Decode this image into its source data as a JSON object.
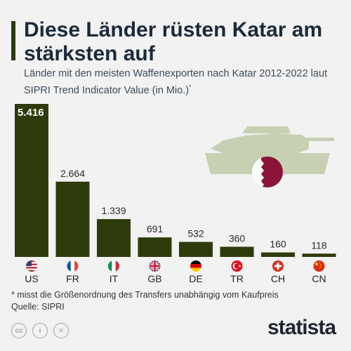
{
  "header": {
    "title": "Diese Länder rüsten Katar am stärksten auf",
    "subtitle": "Länder mit den meisten Waffenexporten nach Katar 2012-2022 laut SIPRI Trend Indicator Value (in Mio.)",
    "subtitle_mark": "*"
  },
  "chart_data": {
    "type": "bar",
    "categories": [
      "US",
      "FR",
      "IT",
      "GB",
      "DE",
      "TR",
      "CH",
      "CN"
    ],
    "values": [
      5416,
      2664,
      1339,
      691,
      532,
      360,
      160,
      118
    ],
    "value_labels": [
      "5.416",
      "2.664",
      "1.339",
      "691",
      "532",
      "360",
      "160",
      "118"
    ],
    "ylim": [
      0,
      5416
    ],
    "bar_color": "#2e3b0b",
    "grid": false
  },
  "flags": [
    {
      "country": "US",
      "icon": "us-flag-icon"
    },
    {
      "country": "FR",
      "icon": "fr-flag-icon"
    },
    {
      "country": "IT",
      "icon": "it-flag-icon"
    },
    {
      "country": "GB",
      "icon": "gb-flag-icon"
    },
    {
      "country": "DE",
      "icon": "de-flag-icon"
    },
    {
      "country": "TR",
      "icon": "tr-flag-icon"
    },
    {
      "country": "CH",
      "icon": "ch-flag-icon"
    },
    {
      "country": "CN",
      "icon": "cn-flag-icon"
    }
  ],
  "footer": {
    "note": "* misst die Größenordnung des Transfers unabhängig vom Kaufpreis",
    "source": "Quelle: SIPRI",
    "brand": "statista"
  },
  "colors": {
    "accent": "#2d3b10",
    "tank": "#c7d0b2",
    "qatar": "#8a1538"
  }
}
